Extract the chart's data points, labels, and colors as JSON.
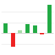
{
  "categories": [
    "",
    "",
    "",
    "",
    "",
    "",
    ""
  ],
  "values": [
    3.8,
    -5.0,
    1.0,
    3.5,
    3.0,
    -0.5,
    10.5
  ],
  "bar_colors": [
    "#22aa44",
    "#ee2222",
    "#aaddaa",
    "#22aa44",
    "#22aa44",
    "#ee2222",
    "#22aa44"
  ],
  "background_color": "#ffffff",
  "ylim": [
    -6.5,
    12.0
  ],
  "grid_color": "#dddddd",
  "tick_color": "#aaaaaa",
  "label_fontsize": 2.5,
  "bar_width": 0.55
}
